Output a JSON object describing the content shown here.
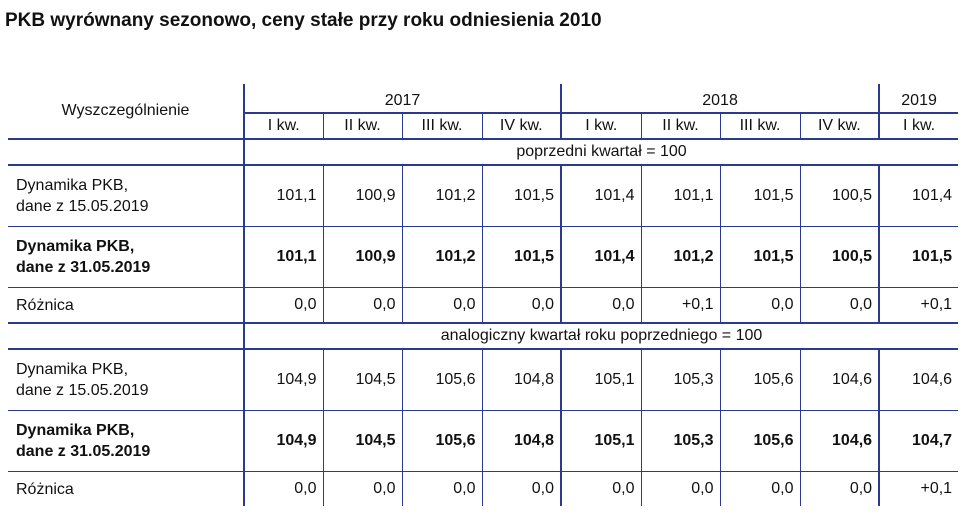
{
  "title": "PKB wyrównany sezonowo, ceny stałe przy roku odniesienia 2010",
  "header": {
    "label": "Wyszczególnienie",
    "years": [
      "2017",
      "2018",
      "2019"
    ],
    "quarters": [
      "I kw.",
      "II kw.",
      "III kw.",
      "IV kw.",
      "I kw.",
      "II kw.",
      "III kw.",
      "IV kw.",
      "I kw."
    ]
  },
  "sections": [
    {
      "heading": "poprzedni kwartał = 100",
      "rows": [
        {
          "label1": "Dynamika PKB,",
          "label2": "dane z 15.05.2019",
          "values": [
            "101,1",
            "100,9",
            "101,2",
            "101,5",
            "101,4",
            "101,1",
            "101,5",
            "100,5",
            "101,4"
          ]
        },
        {
          "label1": "Dynamika PKB,",
          "label2": "dane z 31.05.2019",
          "values": [
            "101,1",
            "100,9",
            "101,2",
            "101,5",
            "101,4",
            "101,2",
            "101,5",
            "100,5",
            "101,5"
          ]
        },
        {
          "label1": "Różnica",
          "values": [
            "0,0",
            "0,0",
            "0,0",
            "0,0",
            "0,0",
            "+0,1",
            "0,0",
            "0,0",
            "+0,1"
          ]
        }
      ]
    },
    {
      "heading": "analogiczny kwartał roku poprzedniego = 100",
      "rows": [
        {
          "label1": "Dynamika PKB,",
          "label2": "dane z 15.05.2019",
          "values": [
            "104,9",
            "104,5",
            "105,6",
            "104,8",
            "105,1",
            "105,3",
            "105,6",
            "104,6",
            "104,6"
          ]
        },
        {
          "label1": "Dynamika PKB,",
          "label2": "dane z 31.05.2019",
          "values": [
            "104,9",
            "104,5",
            "105,6",
            "104,8",
            "105,1",
            "105,3",
            "105,6",
            "104,6",
            "104,7"
          ]
        },
        {
          "label1": "Różnica",
          "values": [
            "0,0",
            "0,0",
            "0,0",
            "0,0",
            "0,0",
            "0,0",
            "0,0",
            "0,0",
            "+0,1"
          ]
        }
      ]
    }
  ]
}
